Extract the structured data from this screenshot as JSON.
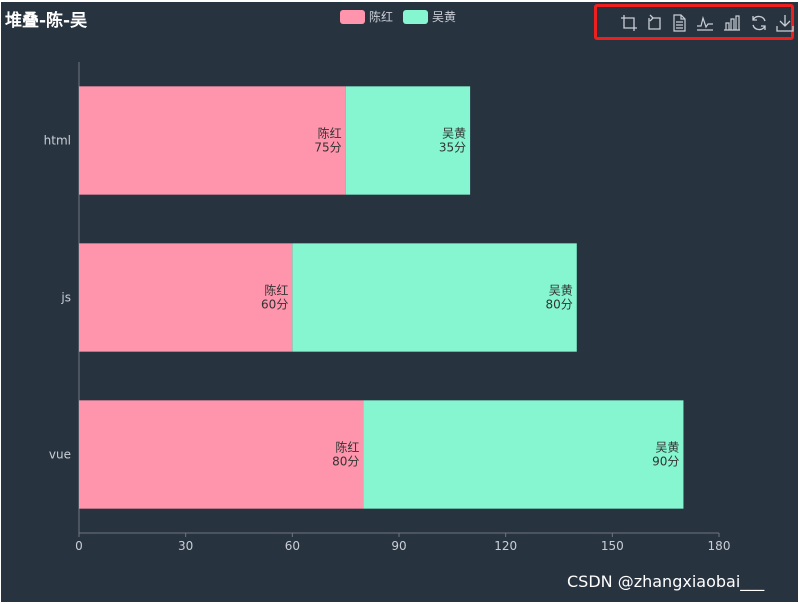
{
  "chart_data": {
    "type": "bar",
    "orientation": "horizontal",
    "stacked": true,
    "title": "堆叠-陈-吴",
    "categories": [
      "html",
      "js",
      "vue"
    ],
    "series": [
      {
        "name": "陈红",
        "values": [
          75,
          60,
          80
        ],
        "color": "#ff95ad"
      },
      {
        "name": "吴黄",
        "values": [
          35,
          80,
          90
        ],
        "color": "#85f6cf"
      }
    ],
    "xlim": [
      0,
      180
    ],
    "xticks": [
      0,
      30,
      60,
      90,
      120,
      150,
      180
    ],
    "label_unit": "分",
    "grid": false,
    "legend_position": "top-center"
  },
  "toolbox": {
    "icons": [
      "crop-icon",
      "crop-back-icon",
      "document-icon",
      "line-chart-icon",
      "bar-chart-icon",
      "refresh-icon",
      "download-icon"
    ]
  },
  "watermark": "CSDN @zhangxiaobai___",
  "colors": {
    "background": "#283340",
    "axis": "#6e7681",
    "text": "#c9ced6",
    "label_text": "#333333",
    "highlight_box": "#ee1f1f"
  }
}
